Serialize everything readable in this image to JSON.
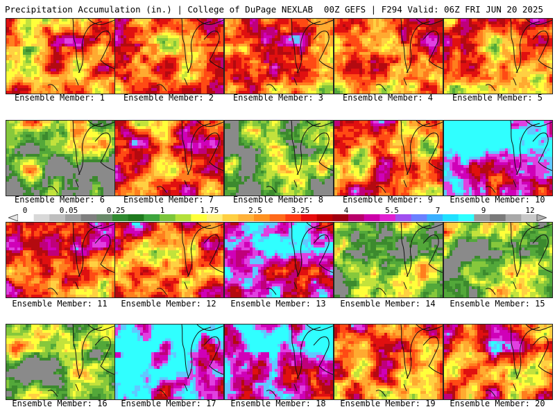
{
  "header": {
    "title": "Precipitation Accumulation (in.) | College of DuPage NEXLAB",
    "run_info": "00Z GEFS | F294 Valid: 06Z FRI JUN 20 2025"
  },
  "members": [
    {
      "label": "Ensemble Member: 1",
      "dominant": "moderate"
    },
    {
      "label": "Ensemble Member: 2",
      "dominant": "moderate"
    },
    {
      "label": "Ensemble Member: 3",
      "dominant": "moderate"
    },
    {
      "label": "Ensemble Member: 4",
      "dominant": "moderate"
    },
    {
      "label": "Ensemble Member: 5",
      "dominant": "moderate"
    },
    {
      "label": "Ensemble Member: 6",
      "dominant": "light"
    },
    {
      "label": "Ensemble Member: 7",
      "dominant": "moderate"
    },
    {
      "label": "Ensemble Member: 8",
      "dominant": "light"
    },
    {
      "label": "Ensemble Member: 9",
      "dominant": "moderate"
    },
    {
      "label": "Ensemble Member: 10",
      "dominant": "heavy"
    },
    {
      "label": "Ensemble Member: 11",
      "dominant": "moderate"
    },
    {
      "label": "Ensemble Member: 12",
      "dominant": "moderate"
    },
    {
      "label": "Ensemble Member: 13",
      "dominant": "heavy"
    },
    {
      "label": "Ensemble Member: 14",
      "dominant": "light"
    },
    {
      "label": "Ensemble Member: 15",
      "dominant": "light"
    },
    {
      "label": "Ensemble Member: 16",
      "dominant": "light"
    },
    {
      "label": "Ensemble Member: 17",
      "dominant": "heavy"
    },
    {
      "label": "Ensemble Member: 18",
      "dominant": "heavy"
    },
    {
      "label": "Ensemble Member: 19",
      "dominant": "moderate"
    },
    {
      "label": "Ensemble Member: 20",
      "dominant": "moderate"
    }
  ],
  "colorbar": {
    "labels": [
      "0",
      "0.05",
      "0.25",
      "1",
      "1.75",
      "2.5",
      "3.25",
      "4",
      "5.5",
      "7",
      "9",
      "12"
    ],
    "colors": [
      "#ffffff",
      "#d8d8d8",
      "#bebebe",
      "#a0a0a0",
      "#7f7f7f",
      "#6a8a6a",
      "#2f8a2f",
      "#1e7a1e",
      "#3da53d",
      "#7cc63a",
      "#b4e03a",
      "#ffff3a",
      "#fff07a",
      "#ffd042",
      "#ffb23a",
      "#ff9220",
      "#ff6a1a",
      "#ff3a12",
      "#e80c0c",
      "#c00000",
      "#a00010",
      "#b8006a",
      "#cc00a8",
      "#e020d0",
      "#a050f0",
      "#6a80ff",
      "#3ab0ff",
      "#20e0ff",
      "#30ffff",
      "#9a9a9a",
      "#7a7a7a",
      "#a8a8a8",
      "#c8c8c8"
    ]
  }
}
